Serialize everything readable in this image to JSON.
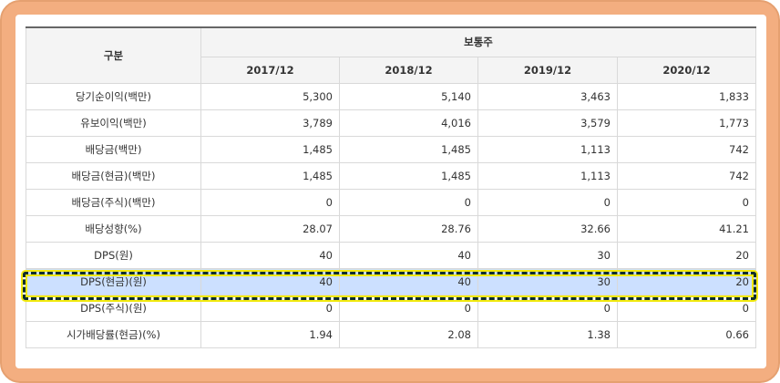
{
  "table": {
    "header_label": "구분",
    "group_label": "보통주",
    "periods": [
      "2017/12",
      "2018/12",
      "2019/12",
      "2020/12"
    ],
    "rows": [
      {
        "label": "당기순이익(백만)",
        "values": [
          "5,300",
          "5,140",
          "3,463",
          "1,833"
        ]
      },
      {
        "label": "유보이익(백만)",
        "values": [
          "3,789",
          "4,016",
          "3,579",
          "1,773"
        ]
      },
      {
        "label": "배당금(백만)",
        "values": [
          "1,485",
          "1,485",
          "1,113",
          "742"
        ]
      },
      {
        "label": "배당금(현금)(백만)",
        "values": [
          "1,485",
          "1,485",
          "1,113",
          "742"
        ]
      },
      {
        "label": "배당금(주식)(백만)",
        "values": [
          "0",
          "0",
          "0",
          "0"
        ]
      },
      {
        "label": "배당성향(%)",
        "values": [
          "28.07",
          "28.76",
          "32.66",
          "41.21"
        ]
      },
      {
        "label": "DPS(원)",
        "values": [
          "40",
          "40",
          "30",
          "20"
        ]
      },
      {
        "label": "DPS(현금)(원)",
        "values": [
          "40",
          "40",
          "30",
          "20"
        ]
      },
      {
        "label": "DPS(주식)(원)",
        "values": [
          "0",
          "0",
          "0",
          "0"
        ]
      },
      {
        "label": "시가배당률(현금)(%)",
        "values": [
          "1.94",
          "2.08",
          "1.38",
          "0.66"
        ]
      }
    ],
    "highlighted_row": 7
  },
  "colors": {
    "frame": "#f3ae80",
    "highlight_fill": "#cce0ff",
    "highlight_border_outer": "#0f2d2d",
    "highlight_border_glow": "#f2ea10"
  }
}
